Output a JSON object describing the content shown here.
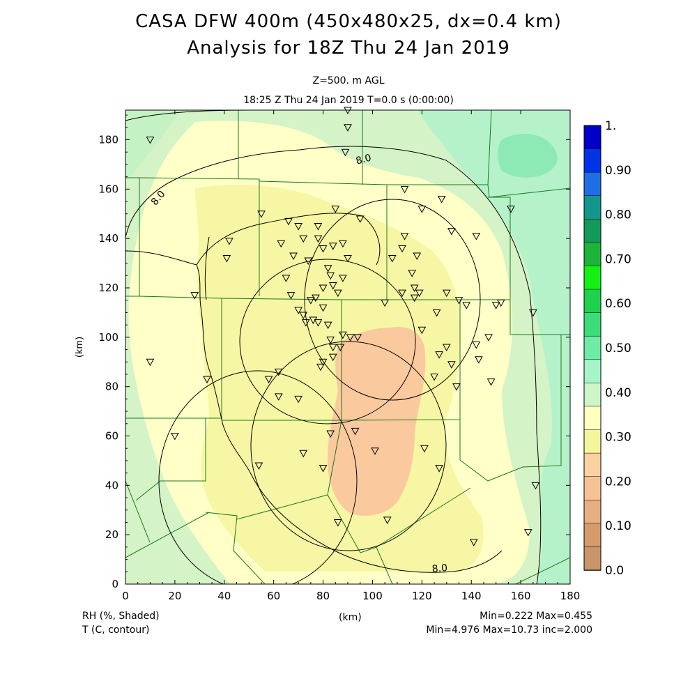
{
  "header": {
    "title_line1": "CASA DFW 400m (450x480x25, dx=0.4 km)",
    "title_line2": "Analysis for 18Z Thu 24 Jan 2019",
    "level": "Z=500. m AGL",
    "time": "18:25 Z Thu 24 Jan 2019    T=0.0 s (0:00:00)"
  },
  "axes": {
    "x_ticks": [
      "0",
      "20",
      "40",
      "60",
      "80",
      "100",
      "120",
      "140",
      "160",
      "180"
    ],
    "y_ticks": [
      "0",
      "20",
      "40",
      "60",
      "80",
      "100",
      "120",
      "140",
      "160",
      "180"
    ],
    "x_label": "(km)",
    "y_label": "(km)",
    "xlim": [
      0,
      180
    ],
    "ylim": [
      0,
      192
    ]
  },
  "colorbar": {
    "labels": [
      "1.",
      "0.90",
      "0.80",
      "0.70",
      "0.60",
      "0.50",
      "0.40",
      "0.30",
      "0.20",
      "0.10",
      "0.0"
    ],
    "colors": [
      "#0000c8",
      "#0033e6",
      "#1e6ee6",
      "#15968c",
      "#119a5a",
      "#1db43c",
      "#14f014",
      "#1ed24b",
      "#3cdc78",
      "#6eeba5",
      "#a5f5c8",
      "#cdf5c8",
      "#ffffc0",
      "#f5f59b",
      "#fad2a0",
      "#f5c393",
      "#e6af83",
      "#d79a6a",
      "#c8966a"
    ]
  },
  "contour_labels": [
    "8.0",
    "8.0",
    "8.0"
  ],
  "footer": {
    "field1": "RH (%, Shaded)",
    "field2": "T (C, contour)",
    "center_label": "(km)",
    "stats1": "Min=0.222  Max=0.455",
    "stats2": "Min=4.976  Max=10.73  inc=2.000"
  },
  "stations": [
    [
      10,
      180
    ],
    [
      90,
      192
    ],
    [
      90,
      185
    ],
    [
      89,
      175
    ],
    [
      42,
      139
    ],
    [
      41,
      132
    ],
    [
      55,
      150
    ],
    [
      70,
      145
    ],
    [
      78,
      145
    ],
    [
      85,
      152
    ],
    [
      95,
      148
    ],
    [
      113,
      160
    ],
    [
      120,
      152
    ],
    [
      128,
      156
    ],
    [
      132,
      143
    ],
    [
      142,
      141
    ],
    [
      156,
      152
    ],
    [
      113,
      141
    ],
    [
      112,
      136
    ],
    [
      118,
      133
    ],
    [
      108,
      132
    ],
    [
      116,
      126
    ],
    [
      117,
      120
    ],
    [
      119,
      118
    ],
    [
      117,
      116
    ],
    [
      112,
      118
    ],
    [
      105,
      114
    ],
    [
      120,
      103
    ],
    [
      126,
      110
    ],
    [
      135,
      115
    ],
    [
      130,
      118
    ],
    [
      138,
      113
    ],
    [
      150,
      113
    ],
    [
      152,
      114
    ],
    [
      165,
      110
    ],
    [
      147,
      100
    ],
    [
      142,
      97
    ],
    [
      143,
      91
    ],
    [
      148,
      82
    ],
    [
      127,
      93
    ],
    [
      130,
      96
    ],
    [
      132,
      89
    ],
    [
      125,
      84
    ],
    [
      134,
      80
    ],
    [
      28,
      117
    ],
    [
      33,
      83
    ],
    [
      10,
      90
    ],
    [
      20,
      60
    ],
    [
      54,
      48
    ],
    [
      58,
      83
    ],
    [
      62,
      86
    ],
    [
      62,
      76
    ],
    [
      70,
      75
    ],
    [
      75,
      115
    ],
    [
      72,
      109
    ],
    [
      77,
      116
    ],
    [
      80,
      112
    ],
    [
      78,
      106
    ],
    [
      82,
      105
    ],
    [
      83,
      99
    ],
    [
      84,
      96
    ],
    [
      74,
      131
    ],
    [
      82,
      128
    ],
    [
      83,
      125
    ],
    [
      80,
      120
    ],
    [
      84,
      121
    ],
    [
      86,
      118
    ],
    [
      88,
      124
    ],
    [
      90,
      132
    ],
    [
      88,
      138
    ],
    [
      84,
      137
    ],
    [
      80,
      136
    ],
    [
      78,
      140
    ],
    [
      72,
      140
    ],
    [
      66,
      147
    ],
    [
      63,
      138
    ],
    [
      68,
      133
    ],
    [
      65,
      124
    ],
    [
      67,
      117
    ],
    [
      70,
      111
    ],
    [
      73,
      106
    ],
    [
      76,
      107
    ],
    [
      88,
      101
    ],
    [
      91,
      100
    ],
    [
      94,
      100
    ],
    [
      79,
      88
    ],
    [
      80,
      90
    ],
    [
      84,
      92
    ],
    [
      87,
      96
    ],
    [
      93,
      62
    ],
    [
      83,
      61
    ],
    [
      80,
      47
    ],
    [
      72,
      53
    ],
    [
      101,
      54
    ],
    [
      121,
      55
    ],
    [
      127,
      47
    ],
    [
      106,
      26
    ],
    [
      141,
      17
    ],
    [
      163,
      21
    ],
    [
      166,
      40
    ],
    [
      86,
      25
    ]
  ]
}
